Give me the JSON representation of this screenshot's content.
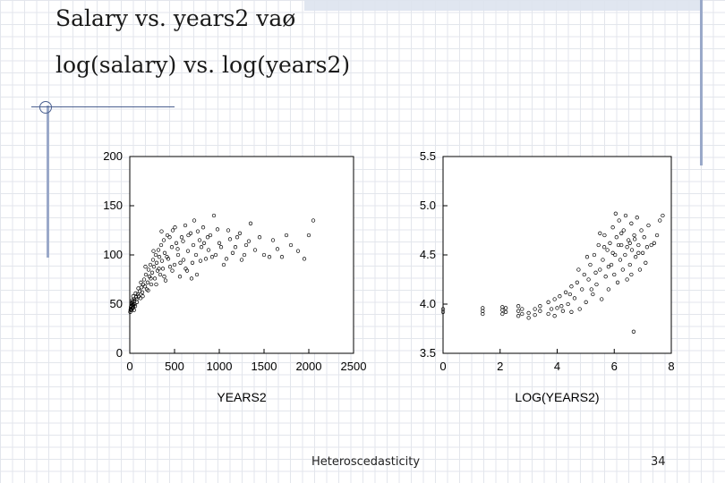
{
  "slide": {
    "title_line1": "Salary vs. years2 vaø",
    "title_line2": "log(salary) vs. log(years2)",
    "footer_label": "Heteroscedasticity",
    "page_number": "34"
  },
  "colors": {
    "accent": "#4a5f8f",
    "grid": "#e3e6ec"
  },
  "chart_data": [
    {
      "type": "scatter",
      "xlabel": "YEARS2",
      "ylabel": "",
      "xlim": [
        0,
        2500
      ],
      "ylim": [
        0,
        200
      ],
      "xticks": [
        "0",
        "500",
        "1000",
        "1500",
        "2000",
        "2500"
      ],
      "yticks": [
        "0",
        "50",
        "100",
        "150",
        "200"
      ],
      "grid": false,
      "points": [
        [
          10,
          45
        ],
        [
          15,
          48
        ],
        [
          20,
          50
        ],
        [
          25,
          46
        ],
        [
          30,
          52
        ],
        [
          35,
          49
        ],
        [
          40,
          47
        ],
        [
          45,
          53
        ],
        [
          50,
          55
        ],
        [
          55,
          50
        ],
        [
          60,
          48
        ],
        [
          70,
          57
        ],
        [
          80,
          52
        ],
        [
          90,
          60
        ],
        [
          100,
          58
        ],
        [
          110,
          63
        ],
        [
          120,
          56
        ],
        [
          130,
          67
        ],
        [
          140,
          62
        ],
        [
          150,
          70
        ],
        [
          160,
          75
        ],
        [
          170,
          68
        ],
        [
          180,
          80
        ],
        [
          190,
          65
        ],
        [
          200,
          72
        ],
        [
          210,
          85
        ],
        [
          220,
          78
        ],
        [
          230,
          90
        ],
        [
          240,
          70
        ],
        [
          250,
          82
        ],
        [
          260,
          95
        ],
        [
          270,
          88
        ],
        [
          280,
          76
        ],
        [
          290,
          100
        ],
        [
          300,
          92
        ],
        [
          310,
          84
        ],
        [
          320,
          105
        ],
        [
          330,
          98
        ],
        [
          340,
          80
        ],
        [
          350,
          110
        ],
        [
          360,
          94
        ],
        [
          370,
          86
        ],
        [
          380,
          115
        ],
        [
          390,
          102
        ],
        [
          400,
          74
        ],
        [
          420,
          120
        ],
        [
          430,
          96
        ],
        [
          450,
          88
        ],
        [
          470,
          108
        ],
        [
          480,
          125
        ],
        [
          500,
          90
        ],
        [
          520,
          112
        ],
        [
          540,
          100
        ],
        [
          560,
          78
        ],
        [
          580,
          118
        ],
        [
          600,
          95
        ],
        [
          620,
          130
        ],
        [
          640,
          84
        ],
        [
          650,
          104
        ],
        [
          680,
          122
        ],
        [
          700,
          92
        ],
        [
          720,
          135
        ],
        [
          740,
          100
        ],
        [
          750,
          80
        ],
        [
          780,
          115
        ],
        [
          800,
          108
        ],
        [
          820,
          128
        ],
        [
          850,
          96
        ],
        [
          880,
          105
        ],
        [
          900,
          120
        ],
        [
          940,
          140
        ],
        [
          960,
          100
        ],
        [
          1000,
          112
        ],
        [
          1050,
          90
        ],
        [
          1100,
          125
        ],
        [
          1150,
          102
        ],
        [
          1200,
          118
        ],
        [
          1250,
          95
        ],
        [
          1300,
          110
        ],
        [
          1350,
          132
        ],
        [
          1400,
          105
        ],
        [
          1500,
          100
        ],
        [
          1600,
          115
        ],
        [
          1700,
          98
        ],
        [
          1800,
          110
        ],
        [
          1950,
          96
        ],
        [
          2000,
          120
        ],
        [
          2050,
          135
        ],
        [
          5,
          42
        ],
        [
          8,
          44
        ],
        [
          12,
          47
        ],
        [
          18,
          51
        ],
        [
          22,
          44
        ],
        [
          28,
          54
        ],
        [
          33,
          46
        ],
        [
          38,
          58
        ],
        [
          42,
          50
        ],
        [
          48,
          44
        ],
        [
          65,
          61
        ],
        [
          75,
          55
        ],
        [
          95,
          66
        ],
        [
          125,
          72
        ],
        [
          145,
          58
        ],
        [
          175,
          88
        ],
        [
          205,
          64
        ],
        [
          235,
          76
        ],
        [
          265,
          104
        ],
        [
          295,
          70
        ],
        [
          325,
          86
        ],
        [
          355,
          124
        ],
        [
          385,
          78
        ],
        [
          415,
          98
        ],
        [
          445,
          118
        ],
        [
          475,
          84
        ],
        [
          505,
          128
        ],
        [
          535,
          106
        ],
        [
          565,
          92
        ],
        [
          595,
          114
        ],
        [
          625,
          86
        ],
        [
          655,
          120
        ],
        [
          690,
          76
        ],
        [
          710,
          110
        ],
        [
          760,
          124
        ],
        [
          790,
          94
        ],
        [
          830,
          112
        ],
        [
          870,
          118
        ],
        [
          920,
          98
        ],
        [
          980,
          126
        ],
        [
          1020,
          108
        ],
        [
          1080,
          96
        ],
        [
          1120,
          116
        ],
        [
          1180,
          108
        ],
        [
          1230,
          122
        ],
        [
          1280,
          100
        ],
        [
          1330,
          114
        ],
        [
          1450,
          118
        ],
        [
          1560,
          98
        ],
        [
          1650,
          106
        ],
        [
          1750,
          120
        ],
        [
          1880,
          104
        ]
      ]
    },
    {
      "type": "scatter",
      "xlabel": "LOG(YEARS2)",
      "ylabel": "",
      "xlim": [
        0,
        8
      ],
      "ylim": [
        3.5,
        5.5
      ],
      "xticks": [
        "0",
        "2",
        "4",
        "6",
        "8"
      ],
      "yticks": [
        "3.5",
        "4.0",
        "4.5",
        "5.0",
        "5.5"
      ],
      "grid": false,
      "points": [
        [
          0,
          3.92
        ],
        [
          0,
          3.95
        ],
        [
          1.39,
          3.93
        ],
        [
          1.39,
          3.96
        ],
        [
          1.39,
          3.9
        ],
        [
          2.08,
          3.94
        ],
        [
          2.08,
          3.9
        ],
        [
          2.08,
          3.97
        ],
        [
          2.2,
          3.92
        ],
        [
          2.2,
          3.96
        ],
        [
          2.64,
          3.88
        ],
        [
          2.64,
          3.93
        ],
        [
          2.64,
          3.98
        ],
        [
          2.77,
          3.9
        ],
        [
          2.77,
          3.95
        ],
        [
          3.0,
          3.86
        ],
        [
          3.0,
          3.91
        ],
        [
          3.22,
          3.95
        ],
        [
          3.22,
          3.89
        ],
        [
          3.4,
          3.93
        ],
        [
          3.4,
          3.98
        ],
        [
          3.69,
          3.9
        ],
        [
          3.69,
          4.02
        ],
        [
          3.8,
          3.95
        ],
        [
          3.91,
          4.05
        ],
        [
          3.91,
          3.88
        ],
        [
          4.0,
          3.96
        ],
        [
          4.09,
          4.08
        ],
        [
          4.2,
          3.93
        ],
        [
          4.3,
          4.12
        ],
        [
          4.38,
          4.0
        ],
        [
          4.5,
          4.18
        ],
        [
          4.5,
          3.92
        ],
        [
          4.61,
          4.06
        ],
        [
          4.7,
          4.22
        ],
        [
          4.79,
          3.95
        ],
        [
          4.87,
          4.15
        ],
        [
          4.95,
          4.3
        ],
        [
          5.01,
          4.02
        ],
        [
          5.1,
          4.25
        ],
        [
          5.16,
          4.4
        ],
        [
          5.25,
          4.1
        ],
        [
          5.3,
          4.5
        ],
        [
          5.38,
          4.2
        ],
        [
          5.45,
          4.6
        ],
        [
          5.5,
          4.35
        ],
        [
          5.56,
          4.05
        ],
        [
          5.6,
          4.45
        ],
        [
          5.66,
          4.7
        ],
        [
          5.7,
          4.28
        ],
        [
          5.76,
          4.55
        ],
        [
          5.8,
          4.15
        ],
        [
          5.85,
          4.62
        ],
        [
          5.9,
          4.4
        ],
        [
          5.95,
          4.78
        ],
        [
          6.0,
          4.3
        ],
        [
          6.03,
          4.5
        ],
        [
          6.08,
          4.68
        ],
        [
          6.12,
          4.22
        ],
        [
          6.17,
          4.85
        ],
        [
          6.21,
          4.45
        ],
        [
          6.25,
          4.6
        ],
        [
          6.3,
          4.35
        ],
        [
          6.33,
          4.75
        ],
        [
          6.38,
          4.5
        ],
        [
          6.4,
          4.9
        ],
        [
          6.45,
          4.25
        ],
        [
          6.5,
          4.65
        ],
        [
          6.55,
          4.4
        ],
        [
          6.6,
          4.82
        ],
        [
          6.62,
          4.55
        ],
        [
          6.68,
          3.72
        ],
        [
          6.7,
          4.7
        ],
        [
          6.75,
          4.48
        ],
        [
          6.8,
          4.88
        ],
        [
          6.85,
          4.6
        ],
        [
          6.9,
          4.35
        ],
        [
          6.95,
          4.75
        ],
        [
          7.0,
          4.52
        ],
        [
          7.05,
          4.68
        ],
        [
          7.1,
          4.42
        ],
        [
          7.2,
          4.8
        ],
        [
          7.3,
          4.6
        ],
        [
          7.5,
          4.7
        ],
        [
          7.6,
          4.85
        ],
        [
          7.7,
          4.9
        ],
        [
          4.15,
          3.98
        ],
        [
          4.45,
          4.1
        ],
        [
          4.75,
          4.35
        ],
        [
          5.05,
          4.48
        ],
        [
          5.35,
          4.32
        ],
        [
          5.65,
          4.58
        ],
        [
          5.95,
          4.52
        ],
        [
          6.25,
          4.72
        ],
        [
          6.55,
          4.62
        ],
        [
          6.85,
          4.52
        ],
        [
          5.2,
          4.15
        ],
        [
          5.8,
          4.38
        ],
        [
          6.15,
          4.6
        ],
        [
          6.45,
          4.58
        ],
        [
          6.72,
          4.66
        ],
        [
          7.15,
          4.58
        ],
        [
          5.5,
          4.72
        ],
        [
          6.05,
          4.92
        ],
        [
          6.6,
          4.3
        ],
        [
          7.4,
          4.62
        ]
      ]
    }
  ]
}
